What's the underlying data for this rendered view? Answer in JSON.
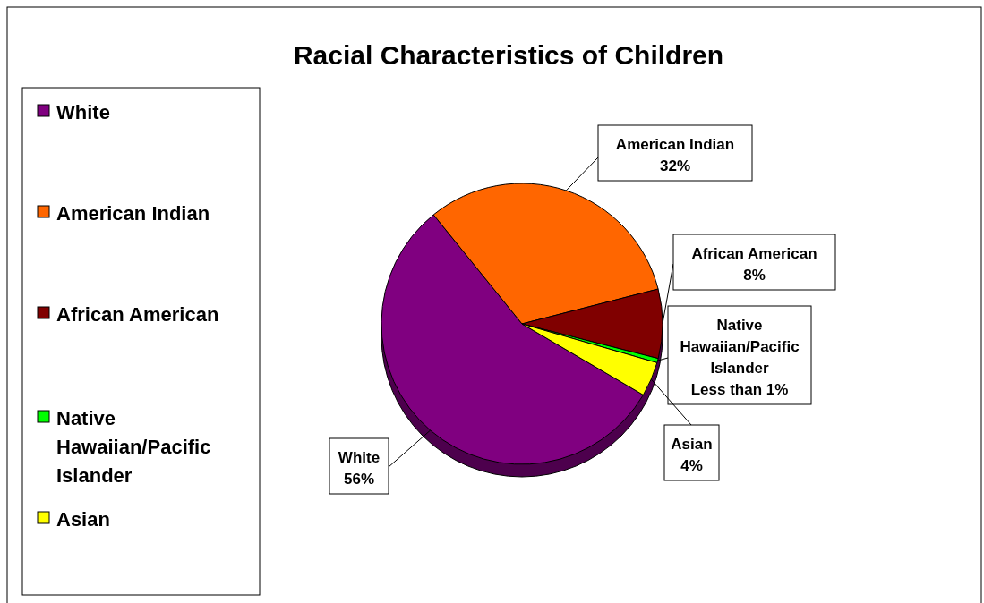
{
  "chart_data": {
    "type": "pie",
    "title": "Racial Characteristics of Children",
    "categories": [
      "White",
      "American Indian",
      "African American",
      "Native Hawaiian/Pacific Islander",
      "Asian"
    ],
    "values": [
      56,
      32,
      8,
      0.5,
      4
    ],
    "value_labels": [
      "56%",
      "32%",
      "8%",
      "Less than 1%",
      "4%"
    ],
    "colors": [
      "#800080",
      "#ff6600",
      "#800000",
      "#00ff00",
      "#ffff00"
    ],
    "legend": "left"
  }
}
